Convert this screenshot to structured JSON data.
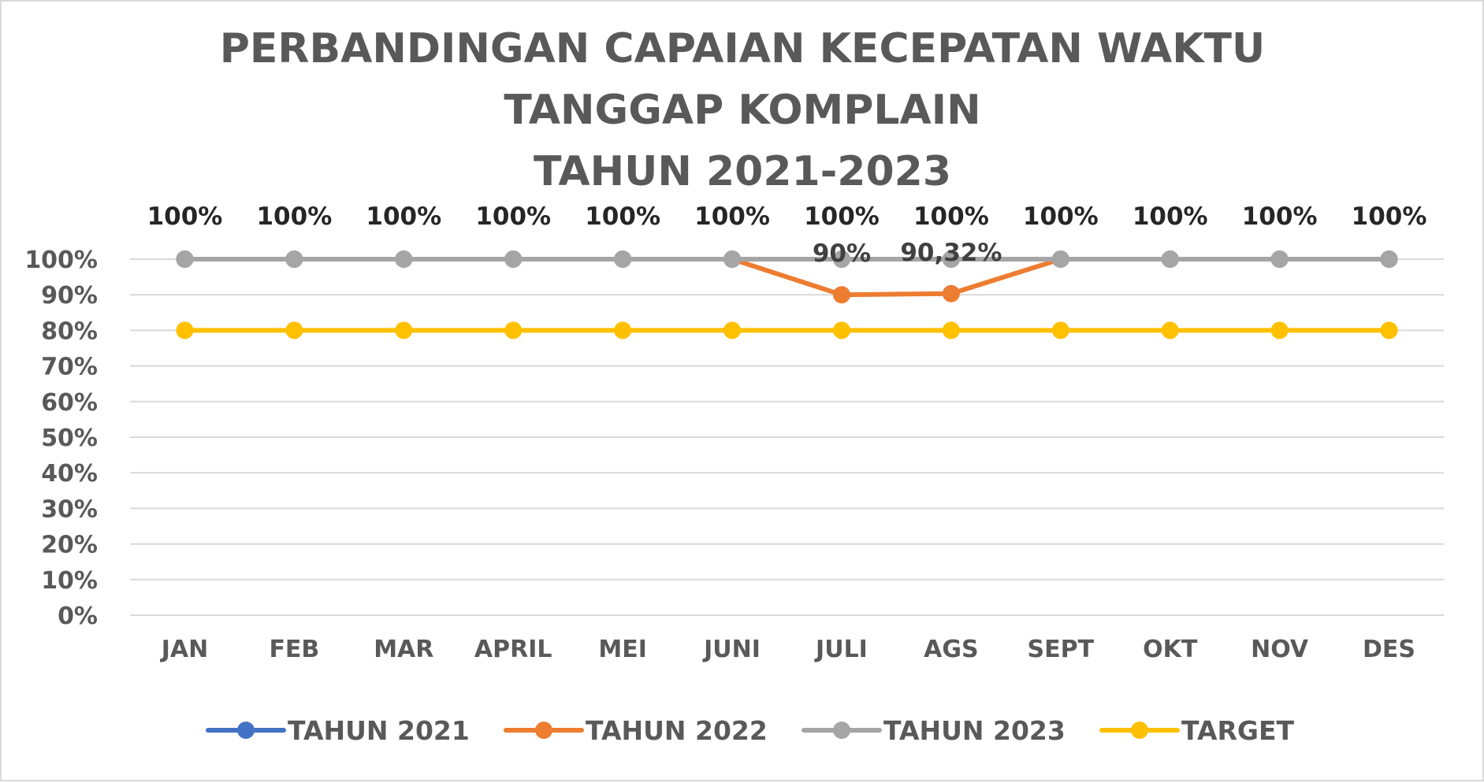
{
  "chart_data": {
    "type": "line",
    "title": [
      "PERBANDINGAN CAPAIAN KECEPATAN WAKTU",
      "TANGGAP KOMPLAIN",
      "TAHUN 2021-2023"
    ],
    "categories": [
      "JAN",
      "FEB",
      "MAR",
      "APRIL",
      "MEI",
      "JUNI",
      "JULI",
      "AGS",
      "SEPT",
      "OKT",
      "NOV",
      "DES"
    ],
    "y_ticks": [
      "0%",
      "10%",
      "20%",
      "30%",
      "40%",
      "50%",
      "60%",
      "70%",
      "80%",
      "90%",
      "100%"
    ],
    "ylim": [
      0,
      100
    ],
    "grid": true,
    "legend_position": "bottom",
    "series": [
      {
        "name": "TAHUN 2021",
        "color": "#4472C4",
        "values": [
          100,
          100,
          100,
          100,
          100,
          100,
          100,
          100,
          100,
          100,
          100,
          100
        ],
        "labels": [],
        "label_position": "above"
      },
      {
        "name": "TAHUN 2022",
        "color": "#ED7D31",
        "values": [
          100,
          100,
          100,
          100,
          100,
          100,
          90,
          90.32,
          100,
          100,
          100,
          100
        ],
        "labels": [
          "",
          "",
          "",
          "",
          "",
          "",
          "90%",
          "90,32%",
          "",
          "",
          "",
          ""
        ],
        "label_position": "above"
      },
      {
        "name": "TAHUN 2023",
        "color": "#A5A5A5",
        "values": [
          100,
          100,
          100,
          100,
          100,
          100,
          100,
          100,
          100,
          100,
          100,
          100
        ],
        "labels": [
          "100%",
          "100%",
          "100%",
          "100%",
          "100%",
          "100%",
          "100%",
          "100%",
          "100%",
          "100%",
          "100%",
          "100%"
        ],
        "label_position": "top"
      },
      {
        "name": "TARGET",
        "color": "#FFC000",
        "values": [
          80,
          80,
          80,
          80,
          80,
          80,
          80,
          80,
          80,
          80,
          80,
          80
        ],
        "labels": [],
        "label_position": "none"
      }
    ]
  }
}
